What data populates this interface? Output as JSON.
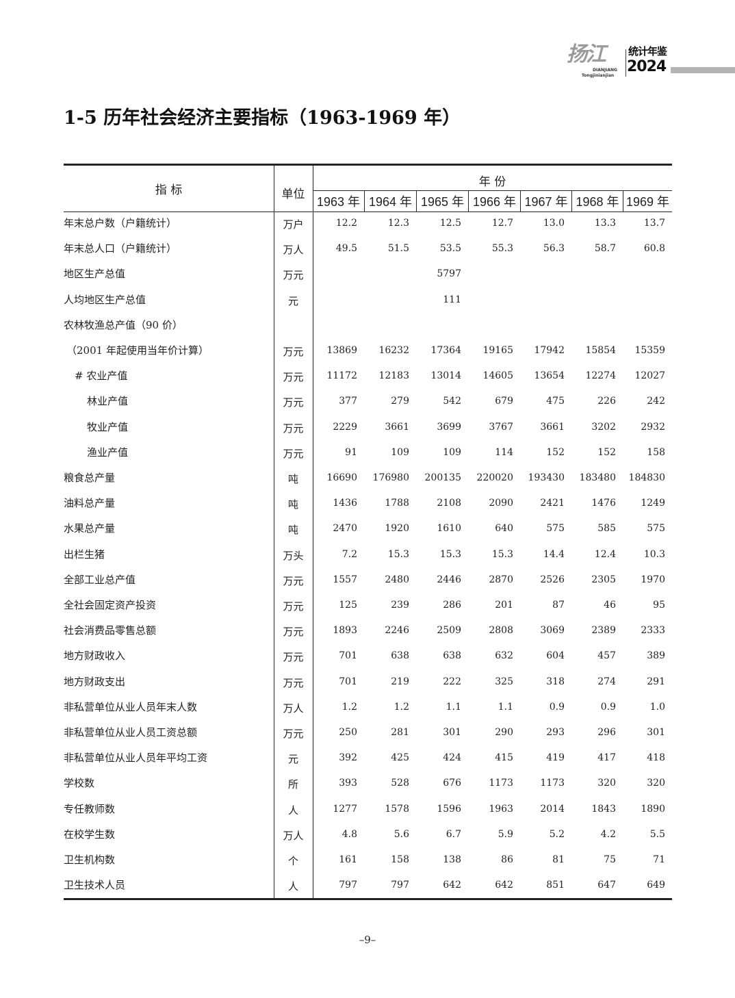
{
  "header": {
    "logo_brush": "扬江",
    "logo_pinyin_top": "DIANJIANG",
    "logo_pinyin_bottom": "Tongjinianjian",
    "logo_title": "统计年鉴",
    "logo_year": "2024"
  },
  "title": "1-5  历年社会经济主要指标（1963-1969 年）",
  "table": {
    "col_indicator": "指 标",
    "col_unit": "单位",
    "col_years_group": "年 份",
    "years": [
      "1963 年",
      "1964 年",
      "1965 年",
      "1966 年",
      "1967 年",
      "1968 年",
      "1969 年"
    ],
    "rows": [
      {
        "label": "年末总户数（户籍统计）",
        "indent": 0,
        "unit": "万户",
        "values": [
          "12.2",
          "12.3",
          "12.5",
          "12.7",
          "13.0",
          "13.3",
          "13.7"
        ]
      },
      {
        "label": "年末总人口（户籍统计）",
        "indent": 0,
        "unit": "万人",
        "values": [
          "49.5",
          "51.5",
          "53.5",
          "55.3",
          "56.3",
          "58.7",
          "60.8"
        ]
      },
      {
        "label": "地区生产总值",
        "indent": 0,
        "unit": "万元",
        "values": [
          "",
          "",
          "5797",
          "",
          "",
          "",
          ""
        ]
      },
      {
        "label": "人均地区生产总值",
        "indent": 0,
        "unit": "元",
        "values": [
          "",
          "",
          "111",
          "",
          "",
          "",
          ""
        ]
      },
      {
        "label": "农林牧渔总产值（90 价）",
        "indent": 0,
        "unit": "",
        "values": [
          "",
          "",
          "",
          "",
          "",
          "",
          ""
        ]
      },
      {
        "label": "（2001 年起使用当年价计算）",
        "indent": 1,
        "unit": "万元",
        "values": [
          "13869",
          "16232",
          "17364",
          "19165",
          "17942",
          "15854",
          "15359"
        ]
      },
      {
        "label": "# 农业产值",
        "indent": 2,
        "unit": "万元",
        "values": [
          "11172",
          "12183",
          "13014",
          "14605",
          "13654",
          "12274",
          "12027"
        ]
      },
      {
        "label": "林业产值",
        "indent": 3,
        "unit": "万元",
        "values": [
          "377",
          "279",
          "542",
          "679",
          "475",
          "226",
          "242"
        ]
      },
      {
        "label": "牧业产值",
        "indent": 3,
        "unit": "万元",
        "values": [
          "2229",
          "3661",
          "3699",
          "3767",
          "3661",
          "3202",
          "2932"
        ]
      },
      {
        "label": "渔业产值",
        "indent": 3,
        "unit": "万元",
        "values": [
          "91",
          "109",
          "109",
          "114",
          "152",
          "152",
          "158"
        ]
      },
      {
        "label": "粮食总产量",
        "indent": 0,
        "unit": "吨",
        "values": [
          "16690",
          "176980",
          "200135",
          "220020",
          "193430",
          "183480",
          "184830"
        ]
      },
      {
        "label": "油料总产量",
        "indent": 0,
        "unit": "吨",
        "values": [
          "1436",
          "1788",
          "2108",
          "2090",
          "2421",
          "1476",
          "1249"
        ]
      },
      {
        "label": "水果总产量",
        "indent": 0,
        "unit": "吨",
        "values": [
          "2470",
          "1920",
          "1610",
          "640",
          "575",
          "585",
          "575"
        ]
      },
      {
        "label": "出栏生猪",
        "indent": 0,
        "unit": "万头",
        "values": [
          "7.2",
          "15.3",
          "15.3",
          "15.3",
          "14.4",
          "12.4",
          "10.3"
        ]
      },
      {
        "label": "全部工业总产值",
        "indent": 0,
        "unit": "万元",
        "values": [
          "1557",
          "2480",
          "2446",
          "2870",
          "2526",
          "2305",
          "1970"
        ]
      },
      {
        "label": "全社会固定资产投资",
        "indent": 0,
        "unit": "万元",
        "values": [
          "125",
          "239",
          "286",
          "201",
          "87",
          "46",
          "95"
        ]
      },
      {
        "label": "社会消费品零售总额",
        "indent": 0,
        "unit": "万元",
        "values": [
          "1893",
          "2246",
          "2509",
          "2808",
          "3069",
          "2389",
          "2333"
        ]
      },
      {
        "label": "地方财政收入",
        "indent": 0,
        "unit": "万元",
        "values": [
          "701",
          "638",
          "638",
          "632",
          "604",
          "457",
          "389"
        ]
      },
      {
        "label": "地方财政支出",
        "indent": 0,
        "unit": "万元",
        "values": [
          "701",
          "219",
          "222",
          "325",
          "318",
          "274",
          "291"
        ]
      },
      {
        "label": "非私营单位从业人员年末人数",
        "indent": 0,
        "unit": "万人",
        "values": [
          "1.2",
          "1.2",
          "1.1",
          "1.1",
          "0.9",
          "0.9",
          "1.0"
        ]
      },
      {
        "label": "非私营单位从业人员工资总额",
        "indent": 0,
        "unit": "万元",
        "values": [
          "250",
          "281",
          "301",
          "290",
          "293",
          "296",
          "301"
        ]
      },
      {
        "label": "非私营单位从业人员年平均工资",
        "indent": 0,
        "unit": "元",
        "values": [
          "392",
          "425",
          "424",
          "415",
          "419",
          "417",
          "418"
        ]
      },
      {
        "label": "学校数",
        "indent": 0,
        "unit": "所",
        "values": [
          "393",
          "528",
          "676",
          "1173",
          "1173",
          "320",
          "320"
        ]
      },
      {
        "label": "专任教师数",
        "indent": 0,
        "unit": "人",
        "values": [
          "1277",
          "1578",
          "1596",
          "1963",
          "2014",
          "1843",
          "1890"
        ]
      },
      {
        "label": "在校学生数",
        "indent": 0,
        "unit": "万人",
        "values": [
          "4.8",
          "5.6",
          "6.7",
          "5.9",
          "5.2",
          "4.2",
          "5.5"
        ]
      },
      {
        "label": "卫生机构数",
        "indent": 0,
        "unit": "个",
        "values": [
          "161",
          "158",
          "138",
          "86",
          "81",
          "75",
          "71"
        ]
      },
      {
        "label": "卫生技术人员",
        "indent": 0,
        "unit": "人",
        "values": [
          "797",
          "797",
          "642",
          "642",
          "851",
          "647",
          "649"
        ]
      }
    ]
  },
  "page_number": "–9–"
}
